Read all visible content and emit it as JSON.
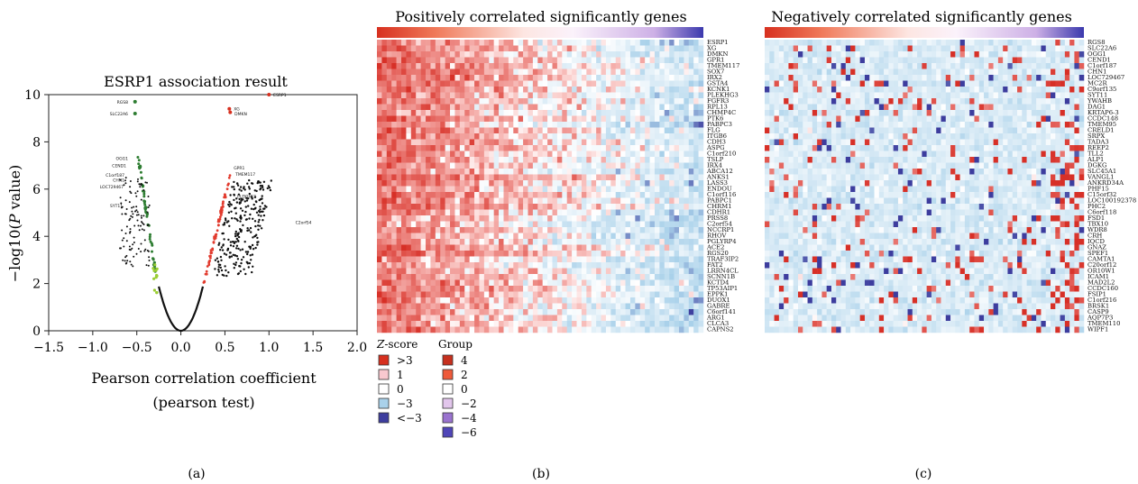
{
  "panel_a": {
    "title": "ESRP1 association result",
    "ylabel_pre": "−log10(",
    "ylabel_italic": "P",
    "ylabel_post": " value)",
    "xlabel_line1": "Pearson correlation coefficient",
    "xlabel_line2": "(pearson test)",
    "caption": "(a)"
  },
  "panel_b": {
    "title": "Positively correlated significantly genes",
    "caption": "(b)",
    "genes": [
      "ESRP1",
      "XG",
      "DMKN",
      "GPR1",
      "TMEM117",
      "SOX7",
      "IRX2",
      "GSTA4",
      "KCNK1",
      "PLEKHG3",
      "FGFR3",
      "RPL13",
      "CHMP4C",
      "PTK6",
      "PABPC3",
      "FLG",
      "ITGB6",
      "CDH3",
      "ASPG",
      "C1orf210",
      "TSLP",
      "IRX4",
      "ABCA12",
      "ANKS1",
      "LASS3",
      "ENDOU",
      "C1orf116",
      "PABPC1",
      "CHRM1",
      "CDHR1",
      "PRSS8",
      "C2orf54",
      "NCCRP1",
      "RHOV",
      "PGLYRP4",
      "ACE2",
      "RGS20",
      "TRAF3IP2",
      "FAT2",
      "LRRN4CL",
      "SCNN1B",
      "KCTD4",
      "TP53AIP1",
      "EPPK1",
      "DUOX1",
      "GABRE",
      "C6orf141",
      "ARG1",
      "CLCA3",
      "CAPNS2"
    ]
  },
  "panel_c": {
    "title": "Negatively correlated significantly genes",
    "caption": "(c)",
    "genes": [
      "RGS8",
      "SLC22A6",
      "OGG1",
      "CEND1",
      "C1orf187",
      "CHN1",
      "LOC729467",
      "MC2R",
      "C9orf135",
      "SYT11",
      "YWAHB",
      "DAG1",
      "KRTAP6-3",
      "CCDC148",
      "TMEM95",
      "CRELD1",
      "SRPX",
      "TADA3",
      "REEP2",
      "TLL2",
      "ALP1",
      "DGKG",
      "SLC45A1",
      "VANGL1",
      "ANKRD34A",
      "PHF15",
      "C15orf32",
      "LOC100192378",
      "PHC2",
      "C6orf118",
      "FSD1",
      "TBX10",
      "WDR8",
      "CRH",
      "IQCD",
      "GNAZ",
      "SPEF1",
      "CAMTA1",
      "C20orf12",
      "OR10W1",
      "ICAM1",
      "MAD2L2",
      "CCDC160",
      "FSIP1",
      "C1orf216",
      "BRSK1",
      "CASP9",
      "AQP7P3",
      "TMEM110",
      "WIPF1"
    ]
  },
  "legend": {
    "zscore_title_italic": "Z",
    "zscore_title_rest": "-score",
    "group_title": "Group",
    "zscore_items": [
      {
        "label": ">3",
        "color": "#d7301f"
      },
      {
        "label": "1",
        "color": "#f8c8cf"
      },
      {
        "label": "0",
        "color": "#ffffff"
      },
      {
        "label": "−3",
        "color": "#a9d1ea"
      },
      {
        "label": "<−3",
        "color": "#3d3d9e"
      }
    ],
    "group_items": [
      {
        "label": "4",
        "color": "#c6301e"
      },
      {
        "label": "2",
        "color": "#ee5a3a"
      },
      {
        "label": "0",
        "color": "#ffffff"
      },
      {
        "label": "−2",
        "color": "#e2c6ec"
      },
      {
        "label": "−4",
        "color": "#9a73cf"
      },
      {
        "label": "−6",
        "color": "#4f45b8"
      }
    ]
  },
  "chart_data": [
    {
      "type": "scatter",
      "title": "ESRP1 association result",
      "xlabel": "Pearson correlation coefficient (pearson test)",
      "ylabel": "−log10(P value)",
      "xlim": [
        -1.5,
        2.0
      ],
      "ylim": [
        0,
        10
      ],
      "xticks": [
        "−1.5",
        "−1.0",
        "−0.5",
        "0.0",
        "0.5",
        "1.0",
        "1.5",
        "2.0"
      ],
      "yticks": [
        "0",
        "2",
        "4",
        "6",
        "8",
        "10"
      ],
      "annotated_points": [
        {
          "gene": "ESRP1",
          "x": 1.0,
          "y": 10.0,
          "color": "#d7301f"
        },
        {
          "gene": "XG",
          "x": 0.55,
          "y": 9.4,
          "color": "#d7301f"
        },
        {
          "gene": "DMKN",
          "x": 0.56,
          "y": 9.25,
          "color": "#d7301f"
        },
        {
          "gene": "RGS8",
          "x": -0.52,
          "y": 9.7,
          "color": "#2e7d32"
        },
        {
          "gene": "SLC22A6",
          "x": -0.52,
          "y": 9.2,
          "color": "#2e7d32"
        }
      ],
      "point_labels": {
        "ESRP1": "ESRP1",
        "XG": "XG",
        "DMKN": "DMKN",
        "RGS8": "RGS8",
        "SLC22A6": "SLC22A6",
        "OGG1": "OGG1",
        "CEND1": "CEND1",
        "C1orf187": "C1orf187",
        "CHN1": "CHN1",
        "LOC729467": "LOC729467",
        "SYT11": "SYT11",
        "GPR1": "GPR1",
        "TMEM117": "TMEM117",
        "PLEKHG3": "PLEKHG3",
        "C2orf54": "C2orf54"
      },
      "groups": [
        {
          "name": "positive",
          "color": "#d7301f"
        },
        {
          "name": "negative",
          "color": "#2e7d32"
        },
        {
          "name": "not significant",
          "color": "#111111"
        }
      ]
    },
    {
      "type": "heatmap",
      "title": "Positively correlated significantly genes",
      "rows": 50,
      "columns": 67,
      "pattern": "red on left samples, blue on right samples"
    },
    {
      "type": "heatmap",
      "title": "Negatively correlated significantly genes",
      "rows": 50,
      "columns": 67,
      "pattern": "mostly light blue with scattered red and dark blue"
    }
  ]
}
